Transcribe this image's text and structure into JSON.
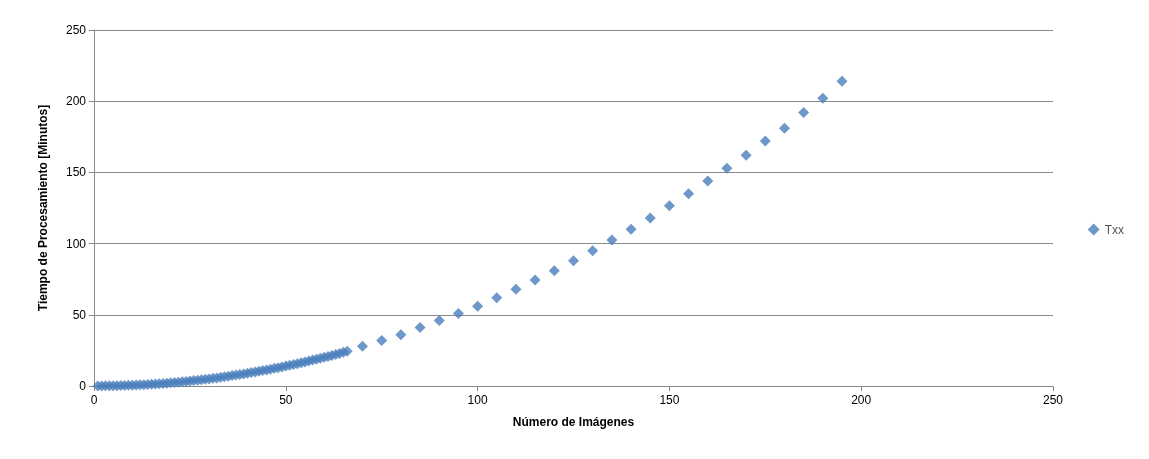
{
  "chart_data": {
    "type": "scatter",
    "xlabel": "Número de Imágenes",
    "ylabel": "Tiempo de Procesamiento [Minutos]",
    "xlim": [
      0,
      250
    ],
    "xticks": [
      0,
      50,
      100,
      150,
      200,
      250
    ],
    "ylim": [
      0,
      250
    ],
    "yticks": [
      0,
      50,
      100,
      150,
      200,
      250
    ],
    "grid": "y",
    "legend": "right",
    "marker": "diamond",
    "series": [
      {
        "name": "Txx",
        "color": "#4a7ebb",
        "x": [
          1,
          2,
          3,
          4,
          5,
          6,
          7,
          8,
          9,
          10,
          11,
          12,
          13,
          14,
          15,
          16,
          17,
          18,
          19,
          20,
          21,
          22,
          23,
          24,
          25,
          26,
          27,
          28,
          29,
          30,
          31,
          32,
          33,
          34,
          35,
          36,
          37,
          38,
          39,
          40,
          41,
          42,
          43,
          44,
          45,
          46,
          47,
          48,
          49,
          50,
          51,
          52,
          53,
          54,
          55,
          56,
          57,
          58,
          59,
          60,
          61,
          62,
          63,
          64,
          65,
          66,
          70,
          75,
          80,
          85,
          90,
          95,
          100,
          105,
          110,
          115,
          120,
          125,
          130,
          135,
          140,
          145,
          150,
          155,
          160,
          165,
          170,
          175,
          180,
          185,
          190,
          195
        ],
        "values": [
          0,
          0,
          0.1,
          0.1,
          0.1,
          0.2,
          0.3,
          0.4,
          0.5,
          0.6,
          0.7,
          0.8,
          0.9,
          1.1,
          1.3,
          1.4,
          1.6,
          1.8,
          2,
          2.2,
          2.5,
          2.7,
          3,
          3.2,
          3.5,
          3.8,
          4.1,
          4.4,
          4.7,
          5,
          5.4,
          5.7,
          6.1,
          6.5,
          6.9,
          7.3,
          7.7,
          8.1,
          8.5,
          9,
          9.4,
          9.9,
          10.4,
          10.8,
          11.3,
          11.8,
          12.4,
          12.9,
          13.4,
          14,
          14.6,
          15.1,
          15.7,
          16.3,
          16.9,
          17.6,
          18.2,
          18.8,
          19.5,
          20.2,
          20.8,
          21.5,
          22.2,
          22.9,
          23.7,
          24.4,
          28,
          32,
          36,
          41,
          46,
          51,
          56,
          62,
          68,
          74.5,
          81,
          88,
          95,
          102.5,
          110,
          118,
          126.5,
          135,
          144,
          153,
          162,
          172,
          181,
          192,
          202,
          214
        ]
      }
    ]
  }
}
